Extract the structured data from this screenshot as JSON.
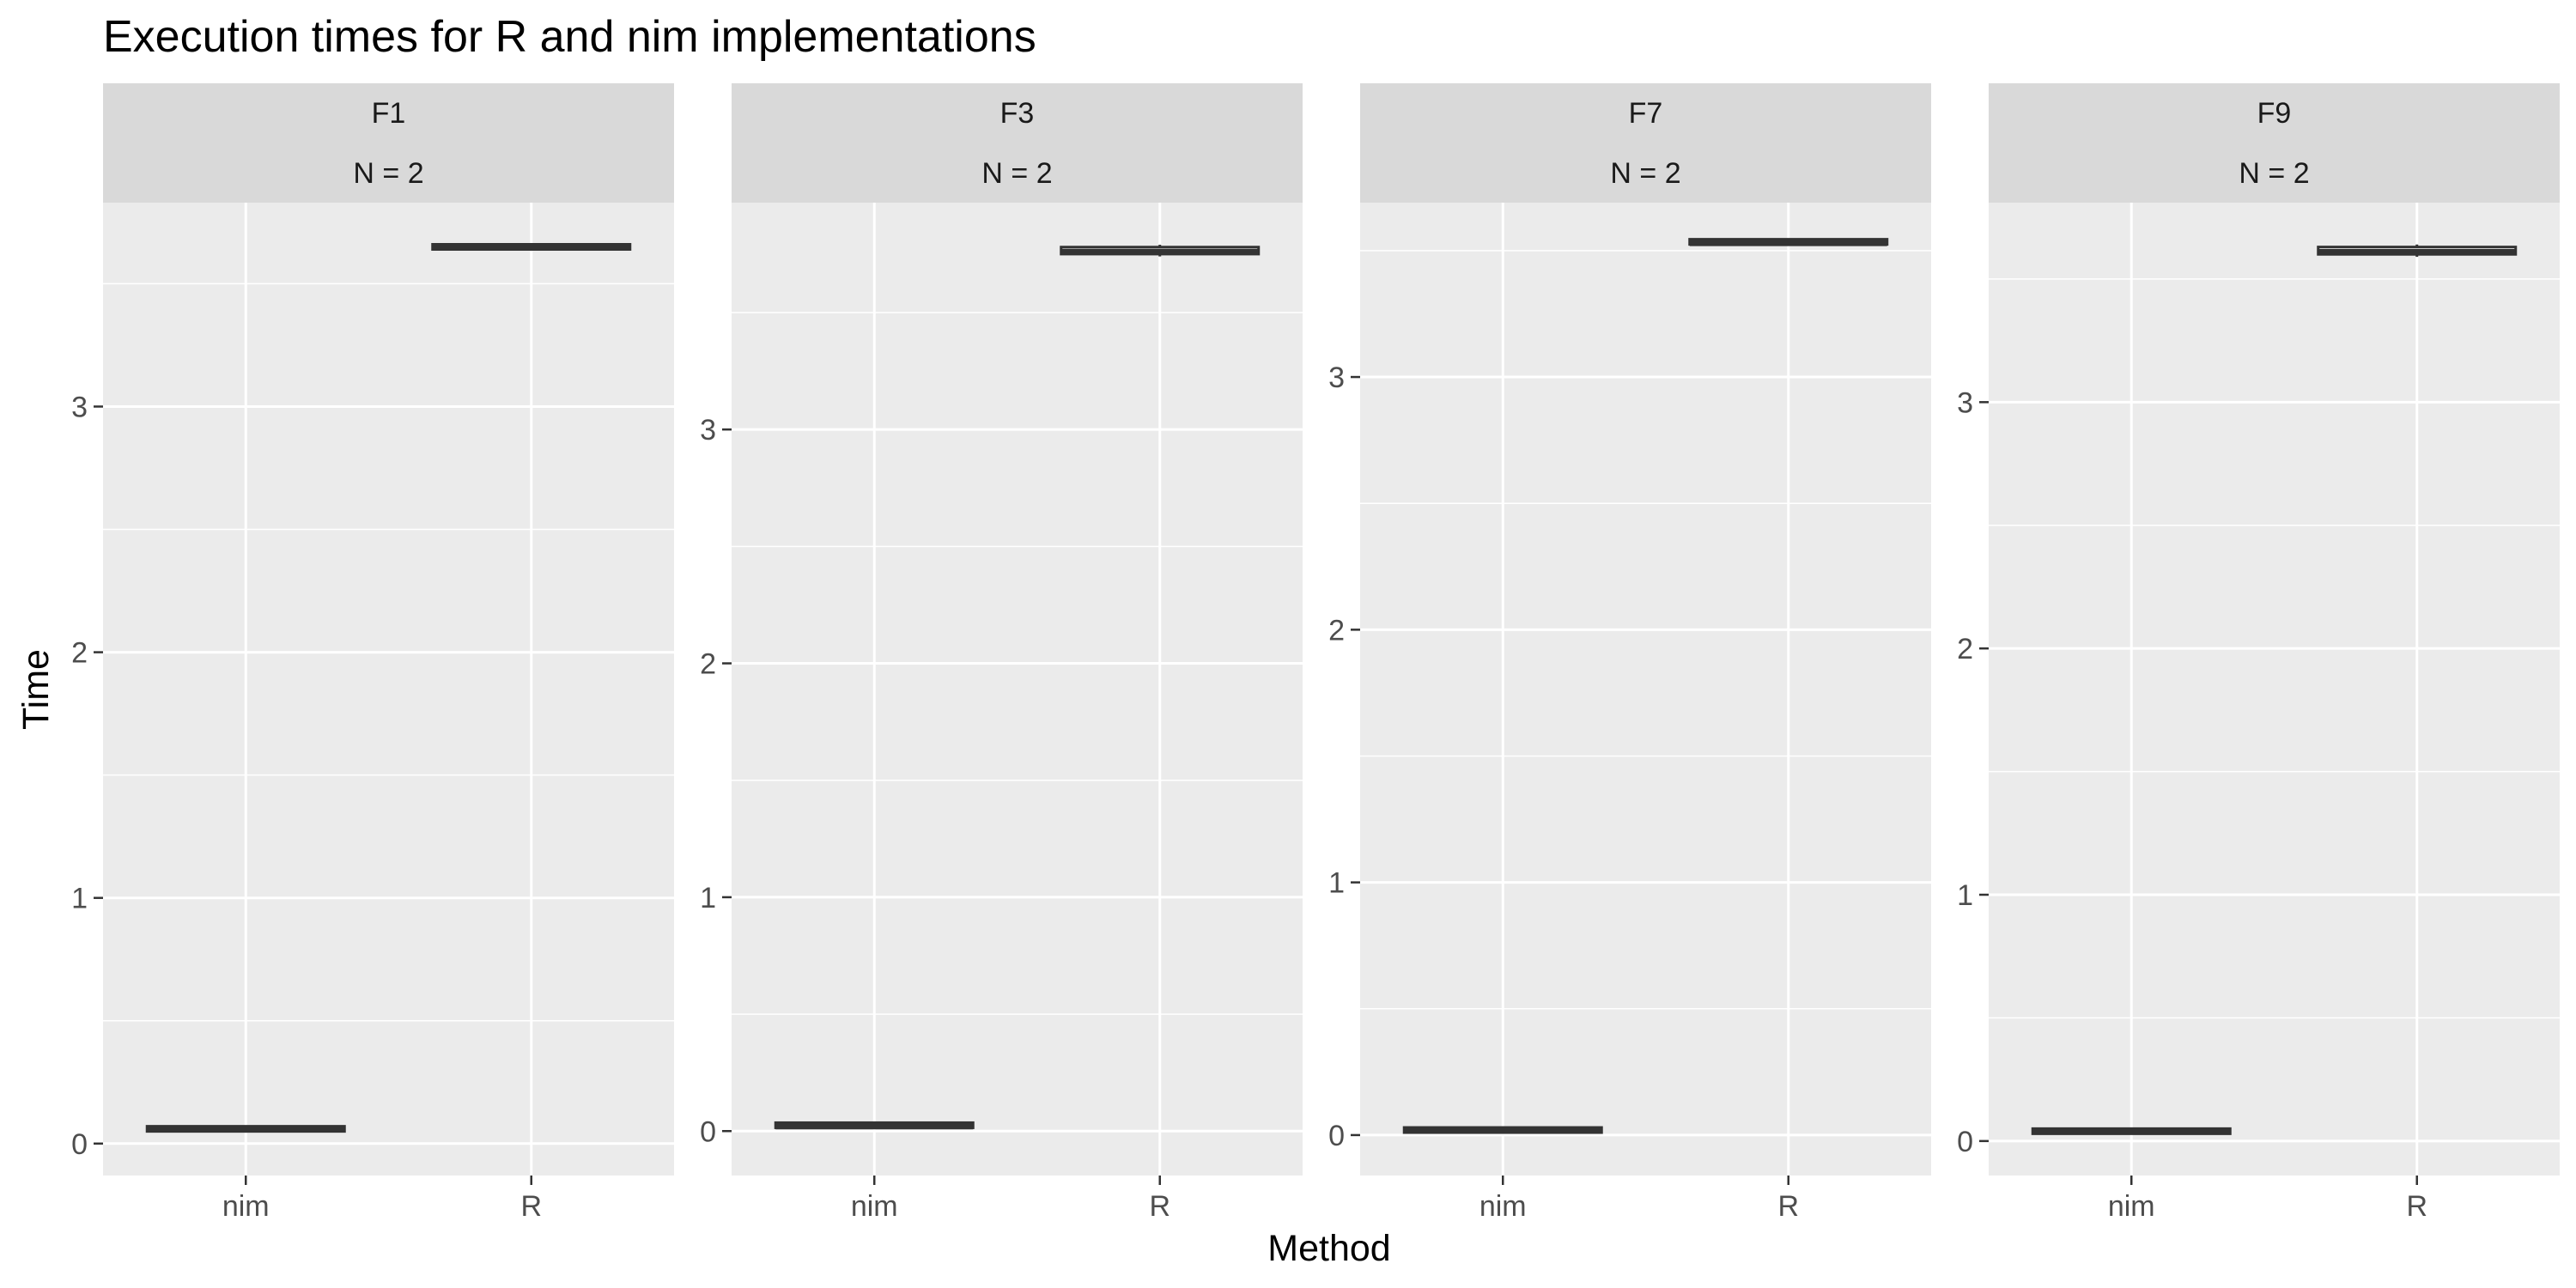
{
  "chart_data": {
    "type": "boxplot",
    "title": "Execution times for R and nim implementations",
    "xlabel": "Method",
    "ylabel": "Time",
    "categories": [
      "nim",
      "R"
    ],
    "grid": true,
    "legend": "none",
    "colors": {
      "panel_bg": "#EBEBEB",
      "strip_bg": "#D9D9D9",
      "grid": "#FFFFFF",
      "box": "#333333",
      "tick": "#333333"
    },
    "facets": [
      {
        "strip": [
          "F1",
          "N = 2"
        ],
        "ylim": [
          -0.13,
          3.83
        ],
        "yticks": [
          0,
          1,
          2,
          3
        ],
        "yticklabels": [
          "0",
          "1",
          "2",
          "3"
        ],
        "boxes": [
          {
            "category": "nim",
            "min": 0.06,
            "q1": 0.06,
            "median": 0.06,
            "q3": 0.06,
            "max": 0.06
          },
          {
            "category": "R",
            "min": 3.65,
            "q1": 3.65,
            "median": 3.65,
            "q3": 3.65,
            "max": 3.65
          }
        ]
      },
      {
        "strip": [
          "F3",
          "N = 2"
        ],
        "ylim": [
          -0.19,
          3.97
        ],
        "yticks": [
          0,
          1,
          2,
          3
        ],
        "yticklabels": [
          "0",
          "1",
          "2",
          "3"
        ],
        "boxes": [
          {
            "category": "nim",
            "min": 0.02,
            "q1": 0.02,
            "median": 0.02,
            "q3": 0.03,
            "max": 0.03
          },
          {
            "category": "R",
            "min": 3.74,
            "q1": 3.75,
            "median": 3.76,
            "q3": 3.78,
            "max": 3.79
          }
        ]
      },
      {
        "strip": [
          "F7",
          "N = 2"
        ],
        "ylim": [
          -0.16,
          3.69
        ],
        "yticks": [
          0,
          1,
          2,
          3
        ],
        "yticklabels": [
          "0",
          "1",
          "2",
          "3"
        ],
        "boxes": [
          {
            "category": "nim",
            "min": 0.02,
            "q1": 0.02,
            "median": 0.02,
            "q3": 0.02,
            "max": 0.02
          },
          {
            "category": "R",
            "min": 3.53,
            "q1": 3.53,
            "median": 3.53,
            "q3": 3.54,
            "max": 3.54
          }
        ]
      },
      {
        "strip": [
          "F9",
          "N = 2"
        ],
        "ylim": [
          -0.14,
          3.81
        ],
        "yticks": [
          0,
          1,
          2,
          3
        ],
        "yticklabels": [
          "0",
          "1",
          "2",
          "3"
        ],
        "boxes": [
          {
            "category": "nim",
            "min": 0.04,
            "q1": 0.04,
            "median": 0.04,
            "q3": 0.04,
            "max": 0.04
          },
          {
            "category": "R",
            "min": 3.59,
            "q1": 3.6,
            "median": 3.61,
            "q3": 3.63,
            "max": 3.64
          }
        ]
      }
    ]
  }
}
